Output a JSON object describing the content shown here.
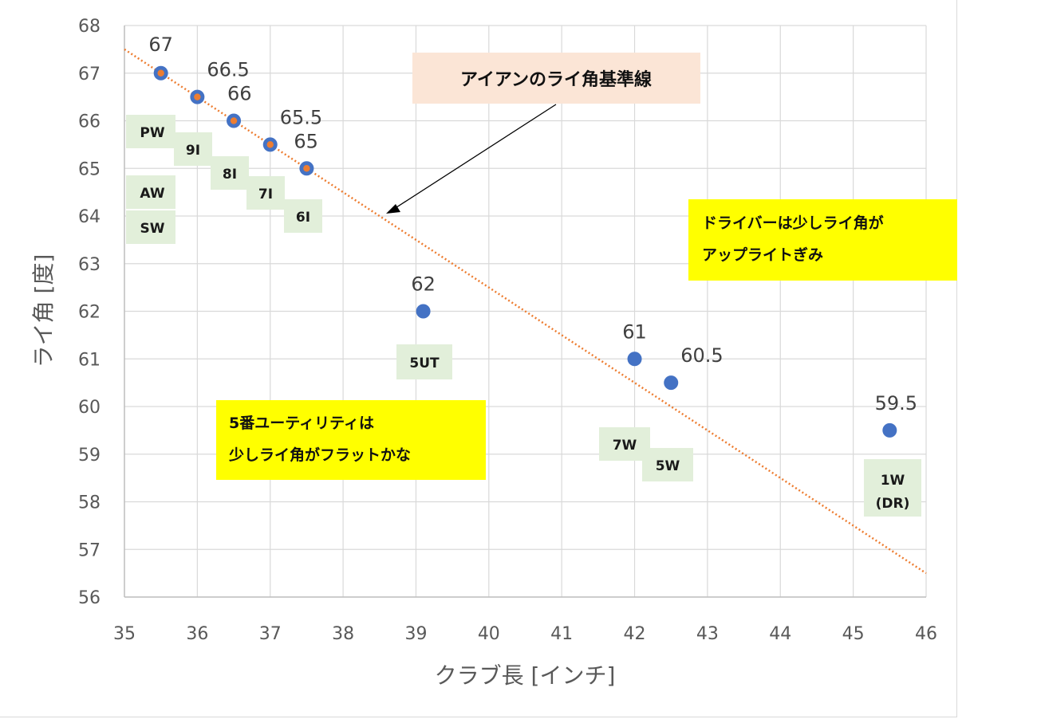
{
  "chart_data": {
    "type": "scatter",
    "xlabel": "クラブ長 [インチ]",
    "ylabel": "ライ角 [度]",
    "xlim": [
      35,
      46
    ],
    "ylim": [
      56,
      68
    ],
    "xticks": [
      "35",
      "36",
      "37",
      "38",
      "39",
      "40",
      "41",
      "42",
      "43",
      "44",
      "45",
      "46"
    ],
    "yticks": [
      "56",
      "57",
      "58",
      "59",
      "60",
      "61",
      "62",
      "63",
      "64",
      "65",
      "66",
      "67",
      "68"
    ],
    "grid": true,
    "colors": {
      "marker": "#4472c4",
      "iron_inner": "#ed7d31",
      "trendline": "#ed7d31",
      "label_bg": "#e2efda",
      "note_bg": "#ffff00",
      "callout_bg": "#fbe5d6"
    },
    "points": [
      {
        "x": 35.5,
        "y": 67,
        "label": "67",
        "iron": true
      },
      {
        "x": 36.0,
        "y": 66.5,
        "label": "66.5",
        "iron": true
      },
      {
        "x": 36.5,
        "y": 66,
        "label": "66",
        "iron": true
      },
      {
        "x": 37.0,
        "y": 65.5,
        "label": "65.5",
        "iron": true
      },
      {
        "x": 37.5,
        "y": 65,
        "label": "65",
        "iron": true
      },
      {
        "x": 39.1,
        "y": 62,
        "label": "62",
        "iron": false
      },
      {
        "x": 42.0,
        "y": 61,
        "label": "61",
        "iron": false
      },
      {
        "x": 42.5,
        "y": 60.5,
        "label": "60.5",
        "iron": false
      },
      {
        "x": 45.5,
        "y": 59.5,
        "label": "59.5",
        "iron": false
      }
    ],
    "trendline": {
      "x": [
        35,
        46
      ],
      "y": [
        67.5,
        56.5
      ],
      "label": "アイアンのライ角基準線"
    },
    "club_labels": [
      "PW",
      "9I",
      "8I",
      "7I",
      "6I",
      "AW",
      "SW",
      "5UT",
      "7W",
      "5W",
      "1W",
      "(DR)"
    ],
    "notes": {
      "driver": [
        "ドライバーは少しライ角が",
        "アップライトぎみ"
      ],
      "utility": [
        "5番ユーティリティは",
        "少しライ角がフラットかな"
      ]
    }
  }
}
